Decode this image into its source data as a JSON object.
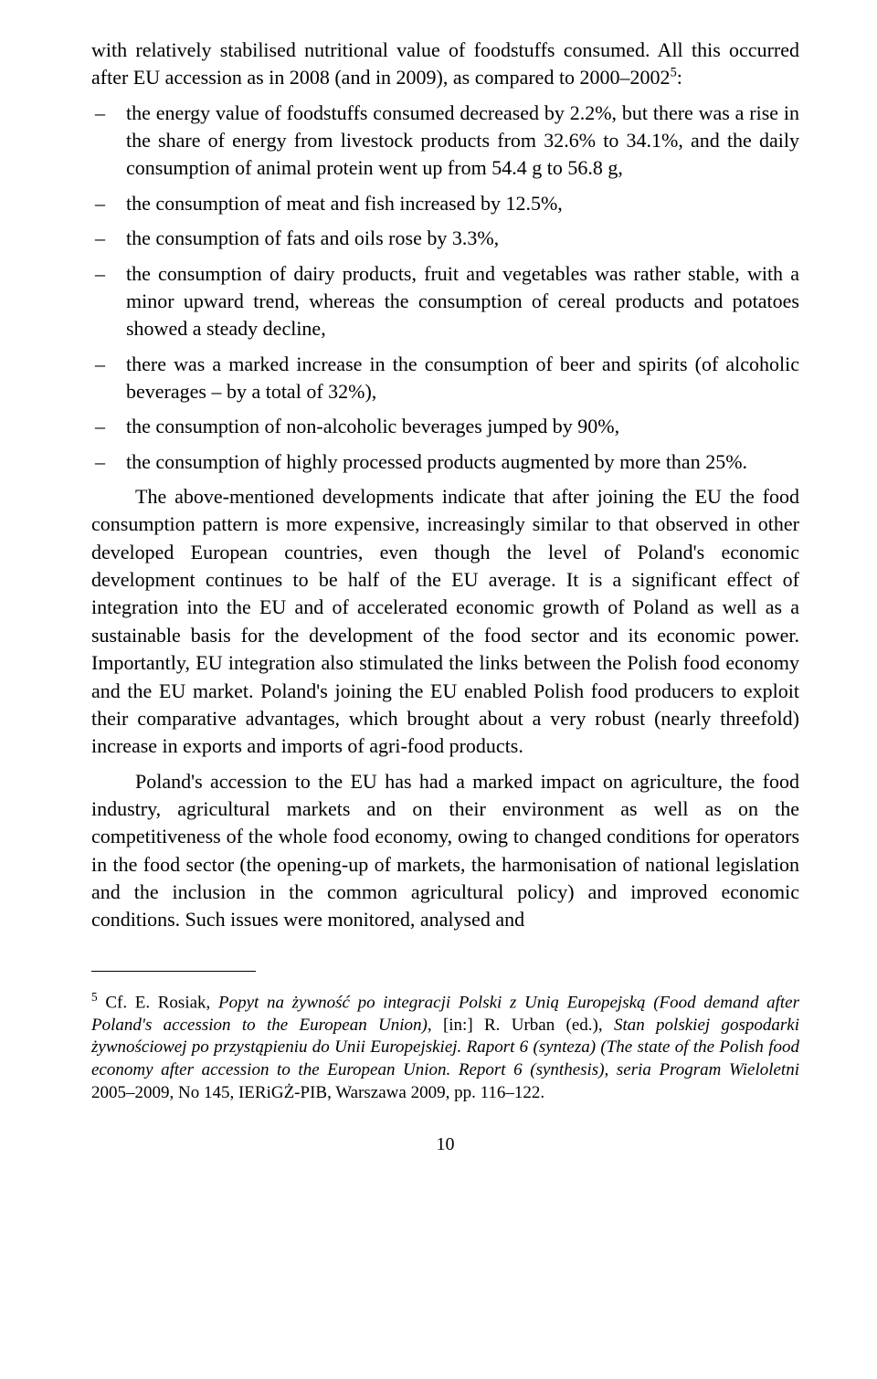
{
  "intro_part1": "with relatively stabilised nutritional value of foodstuffs consumed. All this occurred after EU accession as in 2008 (and in 2009), as compared to 2000–2002",
  "intro_sup": "5",
  "intro_part2": ":",
  "bullets": [
    "the energy value of foodstuffs consumed decreased by 2.2%, but there was a rise in the share of energy from livestock products from 32.6% to 34.1%, and the daily consumption of animal protein went up from 54.4 g to 56.8 g,",
    "the consumption of meat and fish increased by 12.5%,",
    "the consumption of fats and oils rose by 3.3%,",
    "the consumption of dairy products, fruit and vegetables was rather stable, with a minor upward trend, whereas the consumption of cereal products and potatoes showed a steady decline,",
    "there was a marked increase in the consumption of beer and spirits (of alcoholic beverages – by a total of 32%),",
    "the consumption of non-alcoholic beverages jumped by 90%,",
    "the consumption of highly processed products augmented by more than 25%."
  ],
  "para1": "The above-mentioned developments indicate that after joining the EU the food consumption pattern is more expensive, increasingly similar to that observed in other developed European countries, even though the level of Poland's economic development continues to be half of the EU average. It is a significant effect of integration into the EU and of accelerated economic growth of Poland as well as a sustainable basis for the development of the food sector and its economic power. Importantly, EU integration also stimulated the links between the Polish food economy and the EU market. Poland's joining the EU enabled Polish food producers to exploit their comparative advantages, which brought about a very robust (nearly threefold) increase in exports and imports of agri-food products.",
  "para2": "Poland's accession to the EU has had a marked impact on agriculture, the food industry, agricultural markets and on their environment as well as on the competitiveness of the whole food economy, owing to changed conditions for operators in the food sector (the opening-up of markets, the harmonisation of national legislation and the inclusion in the common agricultural policy) and improved economic conditions. Such issues were monitored, analysed and",
  "footnote": {
    "mark": "5",
    "t1": " Cf. E. Rosiak, ",
    "i1": "Popyt na żywność po integracji Polski z Unią Europejską (Food demand after Poland's accession to the European Union)",
    "t2": ", [in:] R. Urban (ed.), ",
    "i2": "Stan polskiej gospodarki żywnościowej po przystąpieniu do Unii Europejskiej. Raport 6 (synteza) (The state of the Polish food economy after accession to the European Union. Report 6 (synthesis), seria Program Wieloletni",
    "t3": " 2005–2009, No 145, IERiGŻ-PIB, Warszawa 2009, pp. 116–122."
  },
  "page_number": "10"
}
